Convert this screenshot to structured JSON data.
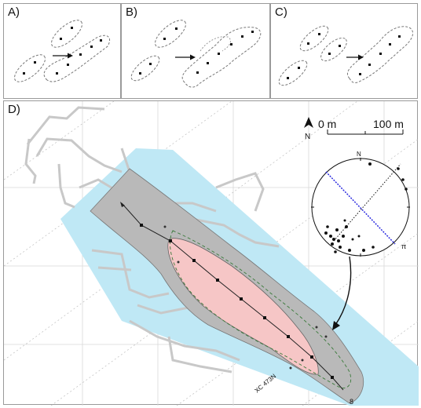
{
  "panels": {
    "a": {
      "label": "A)"
    },
    "b": {
      "label": "B)"
    },
    "c": {
      "label": "C)"
    },
    "d": {
      "label": "D)"
    }
  },
  "scale_bar": {
    "start_label": "0 m",
    "end_label": "100 m"
  },
  "north_arrow": {
    "label": "N"
  },
  "stereonet": {
    "north_label": "N",
    "pi_label": "π"
  },
  "map": {
    "drift_label": "XC 473N",
    "cross_section_label": "8"
  },
  "colors": {
    "halo_blue": "#bfe8f5",
    "gray_zone": "#b9b9b9",
    "pink_core": "#f6c6c6",
    "great_circle": "#2a2ae0",
    "tunnels": "#c8c8c8"
  }
}
